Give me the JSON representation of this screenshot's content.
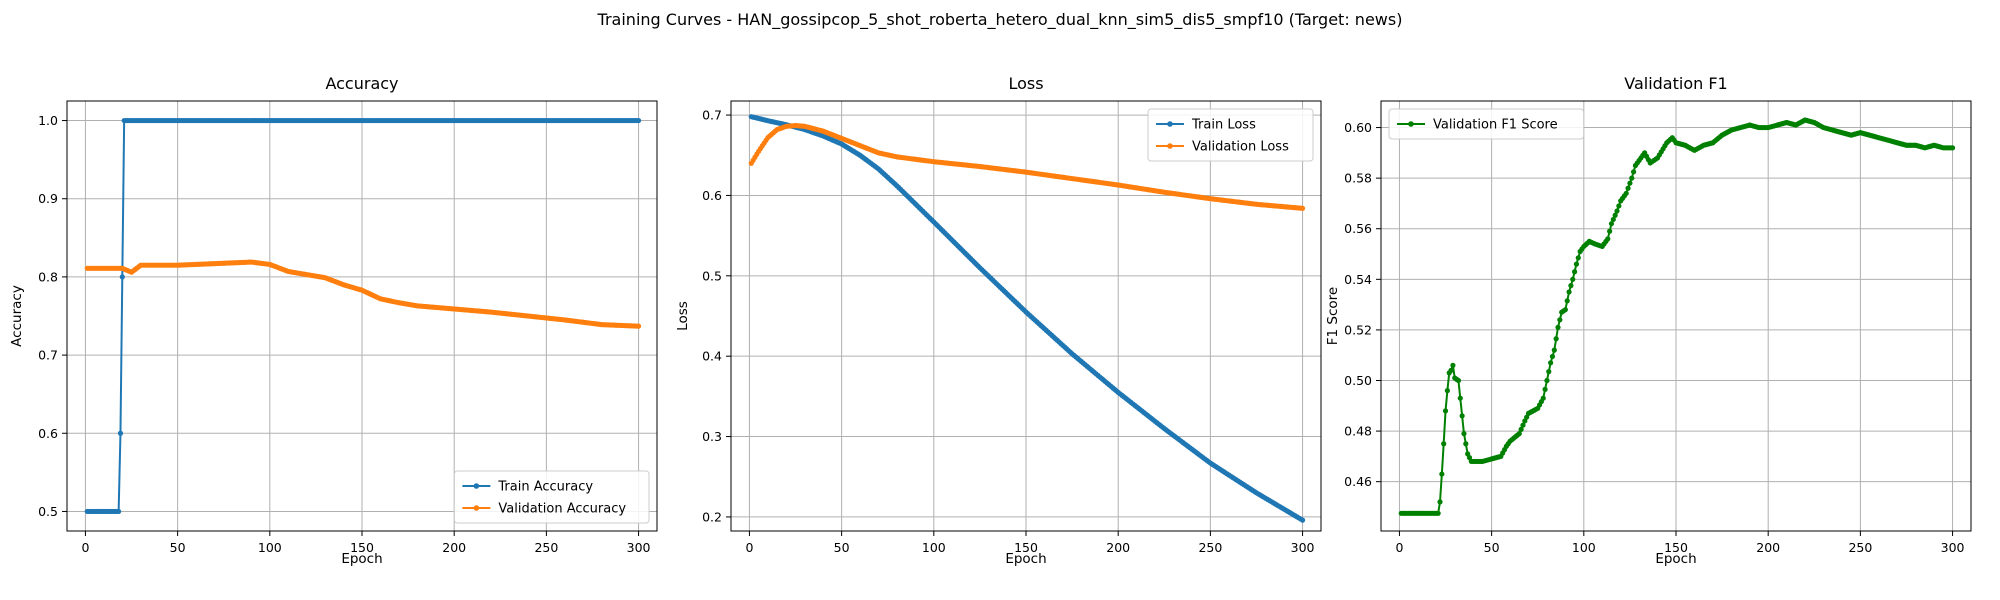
{
  "figure": {
    "title": "Training Curves - HAN_gossipcop_5_shot_roberta_hetero_dual_knn_sim5_dis5_smpf10 (Target: news)"
  },
  "colors": {
    "train": "#1f77b4",
    "validation": "#ff7f0e",
    "f1": "#008000",
    "grid": "#b0b0b0",
    "legend_border": "#cccccc"
  },
  "chart_data": [
    {
      "type": "line",
      "title": "Accuracy",
      "xlabel": "Epoch",
      "ylabel": "Accuracy",
      "xlim": [
        -10,
        310
      ],
      "ylim": [
        0.475,
        1.025
      ],
      "xticks": [
        0,
        50,
        100,
        150,
        200,
        250,
        300
      ],
      "yticks": [
        0.5,
        0.6,
        0.7,
        0.8,
        0.9,
        1.0
      ],
      "ytick_labels": [
        "0.5",
        "0.6",
        "0.7",
        "0.8",
        "0.9",
        "1.0"
      ],
      "grid": true,
      "legend": "lower right",
      "series": [
        {
          "name": "Train Accuracy",
          "color": "#1f77b4",
          "points": [
            [
              1,
              0.5
            ],
            [
              18,
              0.5
            ],
            [
              19,
              0.6
            ],
            [
              20,
              0.8
            ],
            [
              21,
              1.0
            ],
            [
              300,
              1.0
            ]
          ]
        },
        {
          "name": "Validation Accuracy",
          "color": "#ff7f0e",
          "points": [
            [
              1,
              0.811
            ],
            [
              20,
              0.811
            ],
            [
              25,
              0.806
            ],
            [
              30,
              0.815
            ],
            [
              50,
              0.815
            ],
            [
              70,
              0.817
            ],
            [
              90,
              0.819
            ],
            [
              100,
              0.816
            ],
            [
              110,
              0.807
            ],
            [
              120,
              0.803
            ],
            [
              130,
              0.799
            ],
            [
              140,
              0.79
            ],
            [
              150,
              0.783
            ],
            [
              160,
              0.772
            ],
            [
              170,
              0.767
            ],
            [
              180,
              0.763
            ],
            [
              200,
              0.759
            ],
            [
              220,
              0.755
            ],
            [
              240,
              0.75
            ],
            [
              260,
              0.745
            ],
            [
              280,
              0.739
            ],
            [
              300,
              0.737
            ]
          ]
        }
      ]
    },
    {
      "type": "line",
      "title": "Loss",
      "xlabel": "Epoch",
      "ylabel": "Loss",
      "xlim": [
        -10,
        310
      ],
      "ylim": [
        0.1825,
        0.7175
      ],
      "xticks": [
        0,
        50,
        100,
        150,
        200,
        250,
        300
      ],
      "yticks": [
        0.2,
        0.3,
        0.4,
        0.5,
        0.6,
        0.7
      ],
      "ytick_labels": [
        "0.2",
        "0.3",
        "0.4",
        "0.5",
        "0.6",
        "0.7"
      ],
      "grid": true,
      "legend": "upper right",
      "series": [
        {
          "name": "Train Loss",
          "color": "#1f77b4",
          "points": [
            [
              1,
              0.698
            ],
            [
              10,
              0.693
            ],
            [
              20,
              0.688
            ],
            [
              30,
              0.682
            ],
            [
              40,
              0.674
            ],
            [
              50,
              0.664
            ],
            [
              60,
              0.65
            ],
            [
              70,
              0.633
            ],
            [
              80,
              0.612
            ],
            [
              100,
              0.567
            ],
            [
              125,
              0.51
            ],
            [
              150,
              0.455
            ],
            [
              175,
              0.403
            ],
            [
              200,
              0.355
            ],
            [
              225,
              0.31
            ],
            [
              250,
              0.267
            ],
            [
              275,
              0.23
            ],
            [
              300,
              0.196
            ]
          ]
        },
        {
          "name": "Validation Loss",
          "color": "#ff7f0e",
          "points": [
            [
              1,
              0.64
            ],
            [
              5,
              0.655
            ],
            [
              10,
              0.672
            ],
            [
              15,
              0.682
            ],
            [
              20,
              0.686
            ],
            [
              25,
              0.687
            ],
            [
              30,
              0.686
            ],
            [
              40,
              0.68
            ],
            [
              50,
              0.671
            ],
            [
              60,
              0.662
            ],
            [
              70,
              0.653
            ],
            [
              80,
              0.648
            ],
            [
              100,
              0.642
            ],
            [
              125,
              0.636
            ],
            [
              150,
              0.629
            ],
            [
              175,
              0.621
            ],
            [
              200,
              0.613
            ],
            [
              225,
              0.604
            ],
            [
              250,
              0.596
            ],
            [
              275,
              0.589
            ],
            [
              300,
              0.584
            ]
          ]
        }
      ]
    },
    {
      "type": "line",
      "title": "Validation F1",
      "xlabel": "Epoch",
      "ylabel": "F1 Score",
      "xlim": [
        -10,
        310
      ],
      "ylim": [
        0.4405,
        0.6105
      ],
      "xticks": [
        0,
        50,
        100,
        150,
        200,
        250,
        300
      ],
      "yticks": [
        0.46,
        0.48,
        0.5,
        0.52,
        0.54,
        0.56,
        0.58,
        0.6
      ],
      "ytick_labels": [
        "0.46",
        "0.48",
        "0.50",
        "0.52",
        "0.54",
        "0.56",
        "0.58",
        "0.60"
      ],
      "grid": true,
      "legend": "upper left",
      "series": [
        {
          "name": "Validation F1 Score",
          "color": "#008000",
          "points": [
            [
              1,
              0.4475
            ],
            [
              21,
              0.4475
            ],
            [
              22,
              0.452
            ],
            [
              23,
              0.463
            ],
            [
              24,
              0.475
            ],
            [
              25,
              0.488
            ],
            [
              26,
              0.496
            ],
            [
              27,
              0.503
            ],
            [
              28,
              0.504
            ],
            [
              29,
              0.506
            ],
            [
              30,
              0.501
            ],
            [
              32,
              0.5
            ],
            [
              33,
              0.493
            ],
            [
              34,
              0.486
            ],
            [
              35,
              0.479
            ],
            [
              36,
              0.475
            ],
            [
              37,
              0.471
            ],
            [
              39,
              0.468
            ],
            [
              45,
              0.468
            ],
            [
              50,
              0.469
            ],
            [
              55,
              0.47
            ],
            [
              58,
              0.474
            ],
            [
              60,
              0.476
            ],
            [
              65,
              0.479
            ],
            [
              68,
              0.484
            ],
            [
              70,
              0.487
            ],
            [
              75,
              0.489
            ],
            [
              78,
              0.493
            ],
            [
              80,
              0.5
            ],
            [
              82,
              0.507
            ],
            [
              84,
              0.512
            ],
            [
              86,
              0.521
            ],
            [
              88,
              0.527
            ],
            [
              90,
              0.528
            ],
            [
              92,
              0.535
            ],
            [
              94,
              0.54
            ],
            [
              96,
              0.546
            ],
            [
              98,
              0.551
            ],
            [
              100,
              0.553
            ],
            [
              103,
              0.555
            ],
            [
              106,
              0.554
            ],
            [
              110,
              0.553
            ],
            [
              113,
              0.556
            ],
            [
              115,
              0.562
            ],
            [
              118,
              0.567
            ],
            [
              120,
              0.571
            ],
            [
              123,
              0.574
            ],
            [
              126,
              0.58
            ],
            [
              128,
              0.585
            ],
            [
              130,
              0.587
            ],
            [
              133,
              0.59
            ],
            [
              136,
              0.586
            ],
            [
              140,
              0.588
            ],
            [
              145,
              0.594
            ],
            [
              148,
              0.596
            ],
            [
              150,
              0.594
            ],
            [
              155,
              0.593
            ],
            [
              160,
              0.591
            ],
            [
              165,
              0.593
            ],
            [
              170,
              0.594
            ],
            [
              175,
              0.597
            ],
            [
              180,
              0.599
            ],
            [
              185,
              0.6
            ],
            [
              190,
              0.601
            ],
            [
              195,
              0.6
            ],
            [
              200,
              0.6
            ],
            [
              205,
              0.601
            ],
            [
              210,
              0.602
            ],
            [
              215,
              0.601
            ],
            [
              220,
              0.603
            ],
            [
              225,
              0.602
            ],
            [
              230,
              0.6
            ],
            [
              235,
              0.599
            ],
            [
              240,
              0.598
            ],
            [
              245,
              0.597
            ],
            [
              250,
              0.598
            ],
            [
              255,
              0.597
            ],
            [
              260,
              0.596
            ],
            [
              265,
              0.595
            ],
            [
              270,
              0.594
            ],
            [
              275,
              0.593
            ],
            [
              280,
              0.593
            ],
            [
              285,
              0.592
            ],
            [
              290,
              0.593
            ],
            [
              295,
              0.592
            ],
            [
              300,
              0.592
            ]
          ]
        }
      ]
    }
  ]
}
